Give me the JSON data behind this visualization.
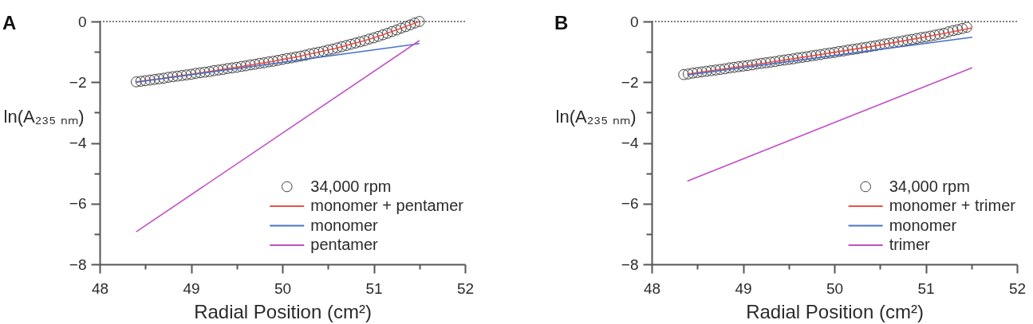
{
  "chart_data": [
    {
      "type": "scatter",
      "title": "A",
      "xlabel": "Radial Position (cm²)",
      "ylabel": "ln(A₂₃₅ ₙₘ)",
      "xlim": [
        48,
        52
      ],
      "xticks": [
        48,
        {
          "value": 48.5,
          "label": null
        },
        49,
        {
          "value": 49.5,
          "label": null
        },
        50,
        {
          "value": 50.5,
          "label": null
        },
        51,
        {
          "value": 51.5,
          "label": null
        },
        52
      ],
      "ylim": [
        -8,
        0
      ],
      "yticks": [
        0,
        {
          "value": -1,
          "label": null
        },
        -2,
        {
          "value": -3,
          "label": null
        },
        -4,
        {
          "value": -5,
          "label": null
        },
        -6,
        {
          "value": -7,
          "label": null
        },
        -8
      ],
      "legend": "bottom right",
      "ref_lines": [
        {
          "axis": "y",
          "value": 0,
          "line_style": "dotted",
          "color": "#555555"
        }
      ],
      "series": [
        {
          "name": "34,000 rpm",
          "marker": "circle",
          "color": "#404040",
          "x": [
            48.4,
            48.45,
            48.5,
            48.55,
            48.6,
            48.65,
            48.7,
            48.75,
            48.8,
            48.85,
            48.9,
            48.95,
            49.0,
            49.05,
            49.1,
            49.15,
            49.2,
            49.25,
            49.3,
            49.35,
            49.4,
            49.45,
            49.5,
            49.55,
            49.6,
            49.65,
            49.7,
            49.75,
            49.8,
            49.85,
            49.9,
            49.95,
            50.0,
            50.05,
            50.1,
            50.15,
            50.2,
            50.25,
            50.3,
            50.35,
            50.4,
            50.45,
            50.5,
            50.55,
            50.6,
            50.65,
            50.7,
            50.75,
            50.8,
            50.85,
            50.9,
            50.95,
            51.0,
            51.05,
            51.1,
            51.15,
            51.2,
            51.25,
            51.3,
            51.35,
            51.4,
            51.45,
            51.5
          ],
          "values": [
            -1.99,
            -1.97,
            -1.95,
            -1.93,
            -1.91,
            -1.89,
            -1.87,
            -1.84,
            -1.82,
            -1.8,
            -1.78,
            -1.76,
            -1.74,
            -1.71,
            -1.69,
            -1.67,
            -1.65,
            -1.62,
            -1.6,
            -1.58,
            -1.55,
            -1.53,
            -1.51,
            -1.48,
            -1.46,
            -1.43,
            -1.41,
            -1.38,
            -1.36,
            -1.33,
            -1.31,
            -1.28,
            -1.25,
            -1.22,
            -1.2,
            -1.17,
            -1.14,
            -1.11,
            -1.07,
            -1.04,
            -1.01,
            -0.98,
            -0.94,
            -0.91,
            -0.87,
            -0.83,
            -0.79,
            -0.75,
            -0.71,
            -0.67,
            -0.63,
            -0.58,
            -0.54,
            -0.49,
            -0.44,
            -0.39,
            -0.33,
            -0.28,
            -0.22,
            -0.17,
            -0.11,
            -0.05,
            0
          ]
        },
        {
          "name": "monomer + pentamer",
          "type": "line",
          "color": "#ee5048",
          "x": [
            48.4,
            48.5,
            48.6,
            48.7,
            48.8,
            48.9,
            49.0,
            49.1,
            49.2,
            49.3,
            49.4,
            49.5,
            49.6,
            49.7,
            49.8,
            49.9,
            50.0,
            50.1,
            50.2,
            50.3,
            50.4,
            50.5,
            50.6,
            50.7,
            50.8,
            50.9,
            51.0,
            51.1,
            51.2,
            51.3,
            51.4,
            51.5
          ],
          "values": [
            -1.99,
            -1.95,
            -1.91,
            -1.87,
            -1.82,
            -1.78,
            -1.74,
            -1.69,
            -1.65,
            -1.6,
            -1.55,
            -1.51,
            -1.46,
            -1.41,
            -1.36,
            -1.31,
            -1.25,
            -1.2,
            -1.14,
            -1.07,
            -1.01,
            -0.94,
            -0.87,
            -0.79,
            -0.71,
            -0.63,
            -0.54,
            -0.44,
            -0.33,
            -0.22,
            -0.11,
            0
          ]
        },
        {
          "name": "monomer",
          "type": "line",
          "color": "#4a72c8",
          "x": [
            48.4,
            51.5
          ],
          "values": [
            -2.0,
            -0.73
          ]
        },
        {
          "name": "pentamer",
          "type": "line",
          "color": "#c04fc4",
          "x": [
            48.4,
            51.5
          ],
          "values": [
            -6.93,
            -0.63
          ]
        }
      ]
    },
    {
      "type": "scatter",
      "title": "B",
      "xlabel": "Radial Position (cm²)",
      "ylabel": "ln(A₂₃₅ ₙₘ)",
      "xlim": [
        48,
        52
      ],
      "xticks": [
        48,
        {
          "value": 48.5,
          "label": null
        },
        49,
        {
          "value": 49.5,
          "label": null
        },
        50,
        {
          "value": 50.5,
          "label": null
        },
        51,
        {
          "value": 51.5,
          "label": null
        },
        52
      ],
      "ylim": [
        -8,
        0
      ],
      "yticks": [
        0,
        {
          "value": -1,
          "label": null
        },
        -2,
        {
          "value": -3,
          "label": null
        },
        -4,
        {
          "value": -5,
          "label": null
        },
        -6,
        {
          "value": -7,
          "label": null
        },
        -8
      ],
      "legend": "bottom right",
      "ref_lines": [
        {
          "axis": "y",
          "value": 0,
          "line_style": "dotted",
          "color": "#555555"
        }
      ],
      "series": [
        {
          "name": "34,000 rpm",
          "marker": "circle",
          "color": "#404040",
          "x": [
            48.35,
            48.4,
            48.45,
            48.5,
            48.55,
            48.6,
            48.65,
            48.7,
            48.75,
            48.8,
            48.85,
            48.9,
            48.95,
            49.0,
            49.05,
            49.1,
            49.15,
            49.2,
            49.25,
            49.3,
            49.35,
            49.4,
            49.45,
            49.5,
            49.55,
            49.6,
            49.65,
            49.7,
            49.75,
            49.8,
            49.85,
            49.9,
            49.95,
            50.0,
            50.05,
            50.1,
            50.15,
            50.2,
            50.25,
            50.3,
            50.35,
            50.4,
            50.45,
            50.5,
            50.55,
            50.6,
            50.65,
            50.7,
            50.75,
            50.8,
            50.85,
            50.9,
            50.95,
            51.0,
            51.05,
            51.1,
            51.15,
            51.2,
            51.25,
            51.3,
            51.35,
            51.4,
            51.45
          ],
          "values": [
            -1.75,
            -1.73,
            -1.7,
            -1.68,
            -1.66,
            -1.64,
            -1.62,
            -1.6,
            -1.58,
            -1.56,
            -1.53,
            -1.51,
            -1.49,
            -1.47,
            -1.45,
            -1.43,
            -1.4,
            -1.38,
            -1.36,
            -1.34,
            -1.32,
            -1.29,
            -1.27,
            -1.25,
            -1.23,
            -1.2,
            -1.18,
            -1.16,
            -1.13,
            -1.11,
            -1.09,
            -1.06,
            -1.04,
            -1.02,
            -0.99,
            -0.97,
            -0.94,
            -0.92,
            -0.9,
            -0.87,
            -0.85,
            -0.82,
            -0.8,
            -0.77,
            -0.74,
            -0.72,
            -0.69,
            -0.67,
            -0.64,
            -0.61,
            -0.59,
            -0.56,
            -0.53,
            -0.51,
            -0.48,
            -0.45,
            -0.42,
            -0.39,
            -0.34,
            -0.3,
            -0.27,
            -0.23,
            -0.19
          ]
        },
        {
          "name": "monomer + trimer",
          "type": "line",
          "color": "#ee5048",
          "x": [
            48.39,
            48.79,
            49.19,
            49.59,
            49.99,
            50.39,
            50.79,
            51.19,
            51.51
          ],
          "values": [
            -1.73,
            -1.56,
            -1.39,
            -1.21,
            -1.02,
            -0.83,
            -0.62,
            -0.4,
            -0.21
          ]
        },
        {
          "name": "monomer",
          "type": "line",
          "color": "#4a72c8",
          "x": [
            48.39,
            51.51
          ],
          "values": [
            -1.76,
            -0.52
          ]
        },
        {
          "name": "trimer",
          "type": "line",
          "color": "#c04fc4",
          "x": [
            48.39,
            51.51
          ],
          "values": [
            -5.26,
            -1.52
          ]
        }
      ]
    }
  ]
}
